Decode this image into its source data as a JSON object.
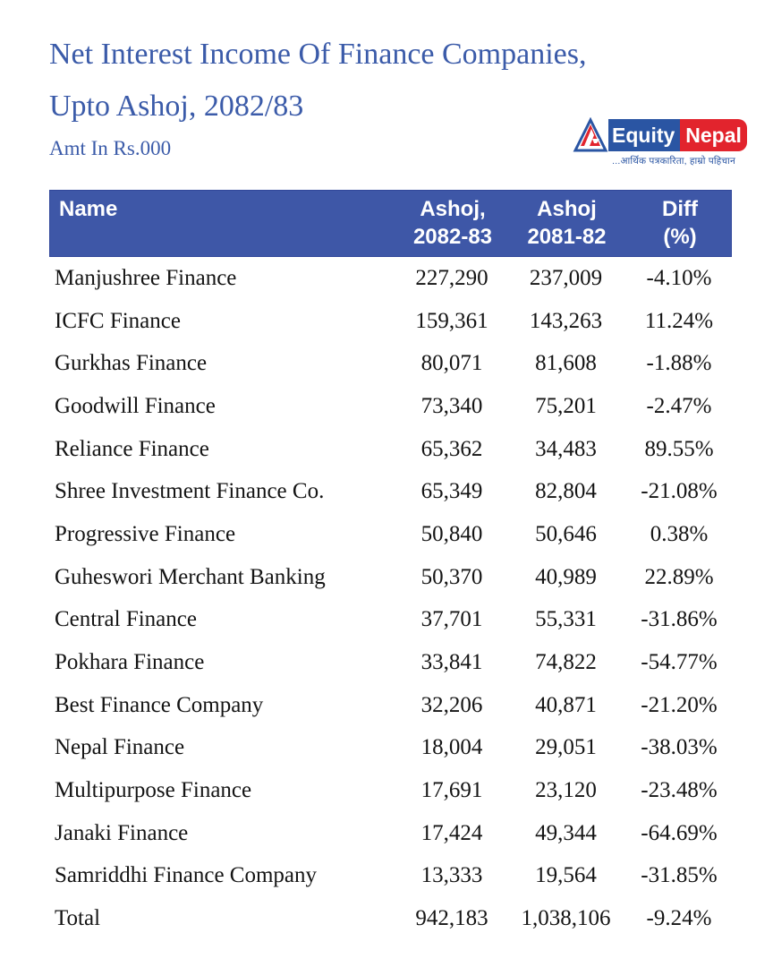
{
  "page": {
    "title_line1": "Net Interest Income Of Finance Companies,",
    "title_line2": "Upto Ashoj, 2082/83",
    "subtitle": "Amt In Rs.000"
  },
  "logo": {
    "brand_first": "Equity",
    "brand_second": "Nepal",
    "tagline": "...आर्थिक पत्रकारिता, हाम्रो पहिचान",
    "colors": {
      "blue": "#2a55a3",
      "red": "#e2242d"
    }
  },
  "table": {
    "header_bg": "#3e57a7",
    "columns": [
      {
        "line1": "Name",
        "line2": ""
      },
      {
        "line1": "Ashoj,",
        "line2": "2082-83"
      },
      {
        "line1": "Ashoj",
        "line2": "2081-82"
      },
      {
        "line1": "Diff",
        "line2": "(%)"
      }
    ],
    "rows": [
      {
        "name": "Manjushree Finance",
        "v2082": "227,290",
        "v2081": "237,009",
        "diff": "-4.10%"
      },
      {
        "name": "ICFC Finance",
        "v2082": "159,361",
        "v2081": "143,263",
        "diff": "11.24%"
      },
      {
        "name": "Gurkhas Finance",
        "v2082": "80,071",
        "v2081": "81,608",
        "diff": "-1.88%"
      },
      {
        "name": "Goodwill Finance",
        "v2082": "73,340",
        "v2081": "75,201",
        "diff": "-2.47%"
      },
      {
        "name": "Reliance Finance",
        "v2082": "65,362",
        "v2081": "34,483",
        "diff": "89.55%"
      },
      {
        "name": "Shree Investment Finance Co.",
        "v2082": "65,349",
        "v2081": "82,804",
        "diff": "-21.08%"
      },
      {
        "name": "Progressive Finance",
        "v2082": "50,840",
        "v2081": "50,646",
        "diff": "0.38%"
      },
      {
        "name": "Guheswori Merchant Banking",
        "v2082": "50,370",
        "v2081": "40,989",
        "diff": "22.89%"
      },
      {
        "name": "Central Finance",
        "v2082": "37,701",
        "v2081": "55,331",
        "diff": "-31.86%"
      },
      {
        "name": "Pokhara Finance",
        "v2082": "33,841",
        "v2081": "74,822",
        "diff": "-54.77%"
      },
      {
        "name": "Best Finance Company",
        "v2082": "32,206",
        "v2081": "40,871",
        "diff": "-21.20%"
      },
      {
        "name": "Nepal Finance",
        "v2082": "18,004",
        "v2081": "29,051",
        "diff": "-38.03%"
      },
      {
        "name": "Multipurpose Finance",
        "v2082": "17,691",
        "v2081": "23,120",
        "diff": "-23.48%"
      },
      {
        "name": "Janaki Finance",
        "v2082": "17,424",
        "v2081": "49,344",
        "diff": "-64.69%"
      },
      {
        "name": "Samriddhi Finance Company",
        "v2082": "13,333",
        "v2081": "19,564",
        "diff": "-31.85%"
      },
      {
        "name": "Total",
        "v2082": "942,183",
        "v2081": "1,038,106",
        "diff": "-9.24%"
      }
    ]
  },
  "chart_data": {
    "type": "table",
    "title": "Net Interest Income Of Finance Companies, Upto Ashoj, 2082/83",
    "unit": "Amt In Rs.000",
    "columns": [
      "Name",
      "Ashoj, 2082-83",
      "Ashoj 2081-82",
      "Diff (%)"
    ],
    "rows": [
      [
        "Manjushree Finance",
        227290,
        237009,
        -4.1
      ],
      [
        "ICFC Finance",
        159361,
        143263,
        11.24
      ],
      [
        "Gurkhas Finance",
        80071,
        81608,
        -1.88
      ],
      [
        "Goodwill Finance",
        73340,
        75201,
        -2.47
      ],
      [
        "Reliance Finance",
        65362,
        34483,
        89.55
      ],
      [
        "Shree Investment Finance Co.",
        65349,
        82804,
        -21.08
      ],
      [
        "Progressive Finance",
        50840,
        50646,
        0.38
      ],
      [
        "Guheswori Merchant Banking",
        50370,
        40989,
        22.89
      ],
      [
        "Central Finance",
        37701,
        55331,
        -31.86
      ],
      [
        "Pokhara Finance",
        33841,
        74822,
        -54.77
      ],
      [
        "Best Finance Company",
        32206,
        40871,
        -21.2
      ],
      [
        "Nepal Finance",
        18004,
        29051,
        -38.03
      ],
      [
        "Multipurpose Finance",
        17691,
        23120,
        -23.48
      ],
      [
        "Janaki Finance",
        17424,
        49344,
        -64.69
      ],
      [
        "Samriddhi Finance Company",
        13333,
        19564,
        -31.85
      ],
      [
        "Total",
        942183,
        1038106,
        -9.24
      ]
    ]
  }
}
